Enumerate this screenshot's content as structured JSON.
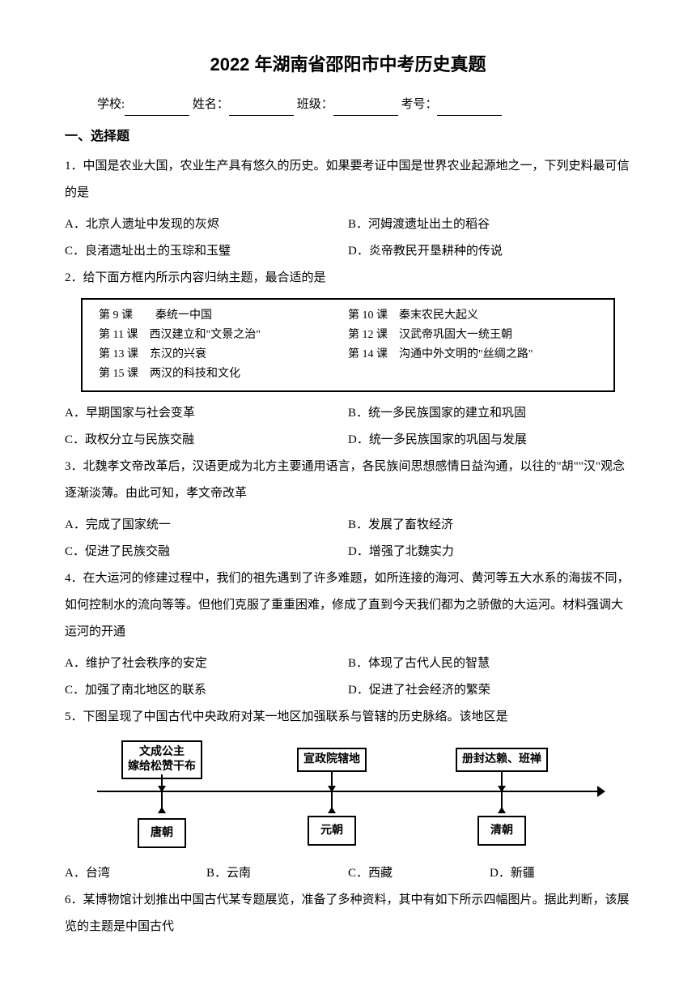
{
  "title": "2022 年湖南省邵阳市中考历史真题",
  "info": {
    "school_label": "学校:",
    "name_label": "姓名：",
    "class_label": "班级：",
    "id_label": "考号："
  },
  "section1_title": "一、选择题",
  "q1": {
    "text": "1．中国是农业大国，农业生产具有悠久的历史。如果要考证中国是世界农业起源地之一，下列史料最可信的是",
    "a": "A．北京人遗址中发现的灰烬",
    "b": "B．河姆渡遗址出土的稻谷",
    "c": "C．良渚遗址出土的玉琮和玉璧",
    "d": "D．炎帝教民开垦耕种的传说"
  },
  "q2": {
    "text": "2．给下面方框内所示内容归纳主题，最合适的是",
    "box": {
      "l1": "第 9 课　　秦统一中国",
      "r1": "第 10 课　秦末农民大起义",
      "l2": "第 11 课　西汉建立和\"文景之治\"",
      "r2": "第 12 课　汉武帝巩固大一统王朝",
      "l3": "第 13 课　东汉的兴衰",
      "r3": "第 14 课　沟通中外文明的\"丝绸之路\"",
      "l4": "第 15 课　两汉的科技和文化"
    },
    "a": "A．早期国家与社会变革",
    "b": "B．统一多民族国家的建立和巩固",
    "c": "C．政权分立与民族交融",
    "d": "D．统一多民族国家的巩固与发展"
  },
  "q3": {
    "text": "3．北魏孝文帝改革后，汉语更成为北方主要通用语言，各民族间思想感情日益沟通，以往的\"胡\"\"汉\"观念逐渐淡薄。由此可知，孝文帝改革",
    "a": "A．完成了国家统一",
    "b": "B．发展了畜牧经济",
    "c": "C．促进了民族交融",
    "d": "D．增强了北魏实力"
  },
  "q4": {
    "text": "4．在大运河的修建过程中，我们的祖先遇到了许多难题，如所连接的海河、黄河等五大水系的海拔不同，如何控制水的流向等等。但他们克服了重重困难，修成了直到今天我们都为之骄傲的大运河。材料强调大运河的开通",
    "a": "A．维护了社会秩序的安定",
    "b": "B．体现了古代人民的智慧",
    "c": "C．加强了南北地区的联系",
    "d": "D．促进了社会经济的繁荣"
  },
  "q5": {
    "text": "5．下图呈现了中国古代中央政府对某一地区加强联系与管辖的历史脉络。该地区是",
    "diagram": {
      "nodes": [
        {
          "top": "文成公主\\n嫁给松赞干布",
          "bottom": "唐朝"
        },
        {
          "top": "宣政院辖地",
          "bottom": "元朝"
        },
        {
          "top": "册封达赖、班禅",
          "bottom": "清朝"
        }
      ]
    },
    "a": "A．台湾",
    "b": "B．云南",
    "c": "C．西藏",
    "d": "D．新疆"
  },
  "q6": {
    "text": "6．某博物馆计划推出中国古代某专题展览，准备了多种资料，其中有如下所示四幅图片。据此判断，该展览的主题是中国古代"
  }
}
